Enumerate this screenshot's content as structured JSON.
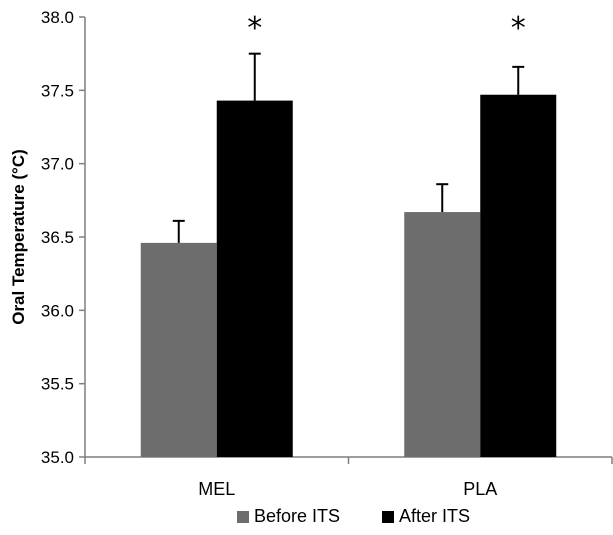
{
  "chart_data": {
    "type": "bar",
    "title": "",
    "xlabel": "",
    "ylabel": "Oral Temperature (°C)",
    "ylim": [
      35.0,
      38.0
    ],
    "yticks": [
      "35.0",
      "35.5",
      "36.0",
      "36.5",
      "37.0",
      "37.5",
      "38.0"
    ],
    "categories": [
      "MEL",
      "PLA"
    ],
    "series": [
      {
        "name": "Before ITS",
        "color": "#6d6d6d",
        "values": [
          36.46,
          36.67
        ],
        "errors": [
          0.15,
          0.19
        ],
        "significance": [
          "",
          ""
        ]
      },
      {
        "name": "After ITS",
        "color": "#000000",
        "values": [
          37.43,
          37.47
        ],
        "errors": [
          0.32,
          0.19
        ],
        "significance": [
          "*",
          "*"
        ]
      }
    ],
    "grid": false,
    "legend_position": "bottom"
  }
}
